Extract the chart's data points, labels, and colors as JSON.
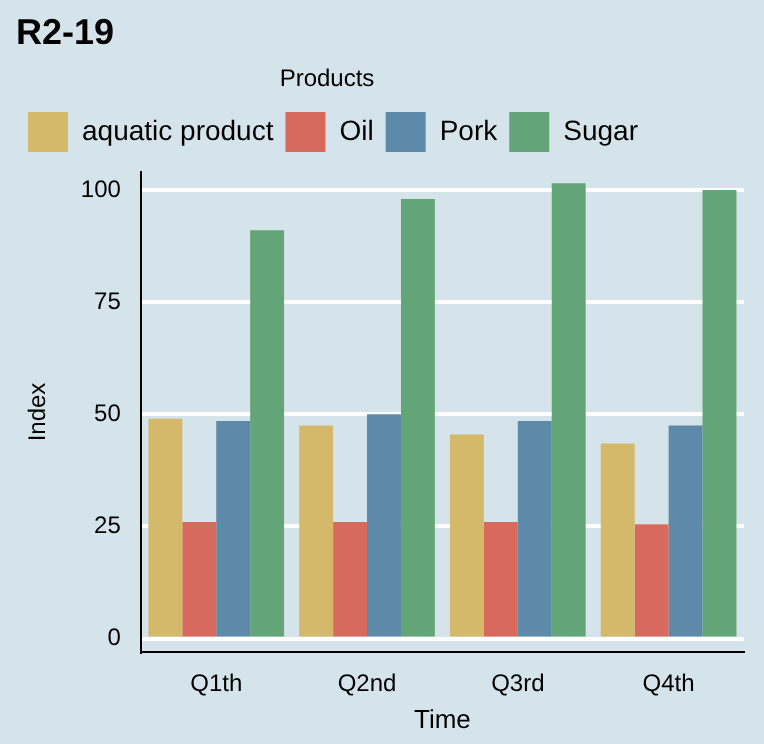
{
  "chart_data": {
    "type": "bar",
    "title": "R2-19",
    "xlabel": "Time",
    "ylabel": "Index",
    "legend_title": "Products",
    "legend": "top",
    "categories": [
      "Q1th",
      "Q2nd",
      "Q3rd",
      "Q4th"
    ],
    "series": [
      {
        "name": "aquatic product",
        "color": "#d4b96a",
        "values": [
          49,
          47.5,
          45.5,
          43.5
        ]
      },
      {
        "name": "Oil",
        "color": "#d7695d",
        "values": [
          26,
          26,
          26,
          25.5
        ]
      },
      {
        "name": "Pork",
        "color": "#5d8aa8",
        "values": [
          48.5,
          50,
          48.5,
          47.5
        ]
      },
      {
        "name": "Sugar",
        "color": "#63a577",
        "values": [
          91,
          98,
          101.5,
          100
        ]
      }
    ],
    "ylim": [
      -3,
      104
    ],
    "yticks": [
      0,
      25,
      50,
      75,
      100
    ],
    "grid": "y"
  }
}
